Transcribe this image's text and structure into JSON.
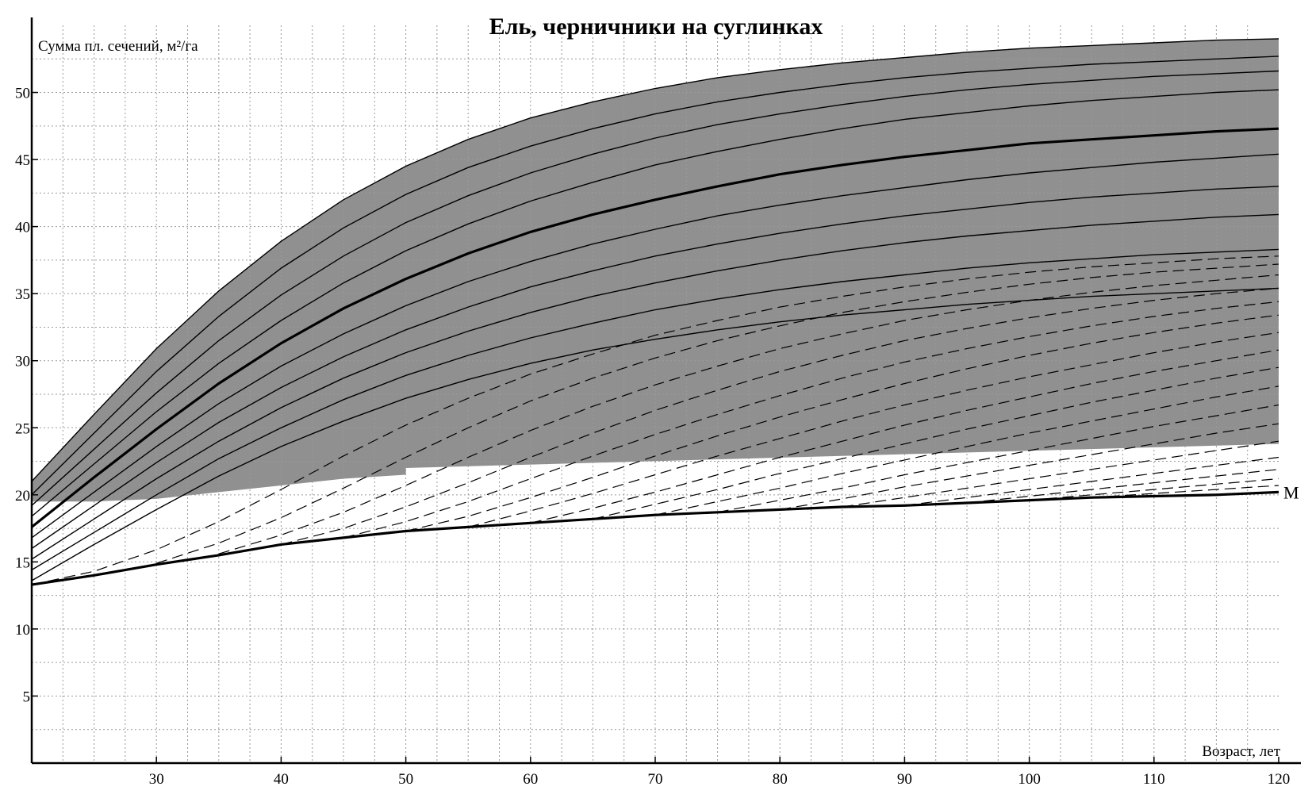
{
  "chart_data": {
    "type": "line",
    "title": "Ель, черничники на суглинках",
    "xlabel": "Возраст, лет",
    "ylabel": "Сумма пл. сечений, м²/га",
    "xlim": [
      20,
      120
    ],
    "ylim": [
      0,
      55
    ],
    "x_ticks": [
      30,
      40,
      50,
      60,
      70,
      80,
      90,
      100,
      110,
      120
    ],
    "y_ticks": [
      5,
      10,
      15,
      20,
      25,
      30,
      35,
      40,
      45,
      50
    ],
    "grid": true,
    "x": [
      20,
      25,
      30,
      35,
      40,
      45,
      50,
      55,
      60,
      65,
      70,
      75,
      80,
      85,
      90,
      95,
      100,
      105,
      110,
      115,
      120
    ],
    "shaded_band": {
      "upper": [
        21.0,
        26.0,
        30.9,
        35.2,
        38.9,
        42.0,
        44.5,
        46.5,
        48.1,
        49.3,
        50.3,
        51.1,
        51.7,
        52.2,
        52.6,
        53.0,
        53.3,
        53.5,
        53.7,
        53.9,
        54.0
      ],
      "lower_left": [
        19.5,
        19.5,
        19.7,
        20.2,
        20.7,
        21.2,
        21.5
      ],
      "lower_left_x": [
        20,
        25,
        30,
        35,
        40,
        45,
        50
      ],
      "lower_right_x": [
        50,
        120
      ],
      "lower_right": [
        22.0,
        23.8
      ],
      "fill": "#8a8a8a"
    },
    "series": [
      {
        "name": "M",
        "style": "solid-bold",
        "values": [
          13.3,
          14.0,
          14.8,
          15.5,
          16.3,
          16.8,
          17.3,
          17.6,
          17.9,
          18.2,
          18.5,
          18.7,
          18.9,
          19.1,
          19.2,
          19.4,
          19.6,
          19.8,
          19.9,
          20.0,
          20.2
        ]
      },
      {
        "style": "solid",
        "values": [
          21.0,
          26.0,
          30.9,
          35.2,
          38.9,
          42.0,
          44.5,
          46.5,
          48.1,
          49.3,
          50.3,
          51.1,
          51.7,
          52.2,
          52.6,
          53.0,
          53.3,
          53.5,
          53.7,
          53.9,
          54.0
        ]
      },
      {
        "style": "solid",
        "values": [
          20.0,
          24.6,
          29.2,
          33.3,
          36.9,
          39.9,
          42.4,
          44.4,
          46.0,
          47.3,
          48.4,
          49.3,
          50.0,
          50.6,
          51.1,
          51.5,
          51.8,
          52.1,
          52.3,
          52.5,
          52.7
        ]
      },
      {
        "style": "solid",
        "values": [
          19.2,
          23.4,
          27.6,
          31.5,
          34.9,
          37.8,
          40.3,
          42.3,
          44.0,
          45.4,
          46.6,
          47.6,
          48.4,
          49.1,
          49.7,
          50.2,
          50.6,
          50.9,
          51.2,
          51.4,
          51.6
        ]
      },
      {
        "style": "solid",
        "values": [
          18.4,
          22.3,
          26.2,
          29.8,
          33.0,
          35.8,
          38.2,
          40.2,
          41.9,
          43.3,
          44.6,
          45.6,
          46.5,
          47.3,
          48.0,
          48.5,
          49.0,
          49.4,
          49.7,
          50.0,
          50.2
        ]
      },
      {
        "style": "solid-bold",
        "values": [
          17.6,
          21.3,
          24.9,
          28.3,
          31.3,
          33.9,
          36.1,
          38.0,
          39.6,
          40.9,
          42.0,
          43.0,
          43.9,
          44.6,
          45.2,
          45.7,
          46.2,
          46.5,
          46.8,
          47.1,
          47.3
        ]
      },
      {
        "style": "solid",
        "values": [
          16.8,
          20.2,
          23.6,
          26.8,
          29.6,
          32.0,
          34.1,
          35.9,
          37.4,
          38.7,
          39.8,
          40.8,
          41.6,
          42.3,
          42.9,
          43.5,
          44.0,
          44.4,
          44.8,
          45.1,
          45.4
        ]
      },
      {
        "style": "solid",
        "values": [
          16.0,
          19.2,
          22.4,
          25.4,
          28.0,
          30.3,
          32.3,
          34.0,
          35.5,
          36.7,
          37.8,
          38.7,
          39.5,
          40.2,
          40.8,
          41.3,
          41.8,
          42.2,
          42.5,
          42.8,
          43.0
        ]
      },
      {
        "style": "solid",
        "values": [
          15.2,
          18.2,
          21.2,
          24.0,
          26.5,
          28.7,
          30.6,
          32.2,
          33.6,
          34.8,
          35.8,
          36.7,
          37.5,
          38.2,
          38.8,
          39.3,
          39.7,
          40.1,
          40.4,
          40.7,
          40.9
        ]
      },
      {
        "style": "solid",
        "values": [
          14.4,
          17.2,
          20.0,
          22.7,
          25.0,
          27.1,
          28.9,
          30.4,
          31.7,
          32.8,
          33.8,
          34.6,
          35.3,
          35.9,
          36.4,
          36.9,
          37.3,
          37.6,
          37.9,
          38.1,
          38.3
        ]
      },
      {
        "style": "solid",
        "values": [
          13.6,
          16.3,
          18.9,
          21.4,
          23.6,
          25.5,
          27.2,
          28.6,
          29.8,
          30.8,
          31.6,
          32.3,
          32.9,
          33.4,
          33.8,
          34.2,
          34.5,
          34.8,
          35.0,
          35.2,
          35.4
        ]
      },
      {
        "style": "dashed",
        "values": [
          13.3,
          14.3,
          15.9,
          18.0,
          20.4,
          22.9,
          25.2,
          27.2,
          29.0,
          30.5,
          31.9,
          33.0,
          34.0,
          34.8,
          35.5,
          36.1,
          36.6,
          37.0,
          37.3,
          37.6,
          37.8
        ]
      },
      {
        "style": "dashed",
        "values": [
          null,
          null,
          14.9,
          16.4,
          18.3,
          20.5,
          22.8,
          25.0,
          27.0,
          28.7,
          30.2,
          31.5,
          32.6,
          33.6,
          34.4,
          35.1,
          35.7,
          36.2,
          36.6,
          36.9,
          37.2
        ]
      },
      {
        "style": "dashed",
        "values": [
          null,
          null,
          null,
          15.6,
          17.0,
          18.7,
          20.7,
          22.8,
          24.8,
          26.6,
          28.2,
          29.6,
          30.9,
          32.0,
          33.0,
          33.8,
          34.5,
          35.1,
          35.6,
          36.0,
          36.4
        ]
      },
      {
        "style": "dashed",
        "values": [
          null,
          null,
          null,
          null,
          16.3,
          17.5,
          19.1,
          20.9,
          22.8,
          24.6,
          26.3,
          27.8,
          29.2,
          30.4,
          31.5,
          32.4,
          33.2,
          33.9,
          34.5,
          35.0,
          35.4
        ]
      },
      {
        "style": "dashed",
        "values": [
          null,
          null,
          null,
          null,
          null,
          16.8,
          18.0,
          19.5,
          21.2,
          22.9,
          24.5,
          26.0,
          27.4,
          28.7,
          29.9,
          30.9,
          31.8,
          32.6,
          33.3,
          33.9,
          34.4
        ]
      },
      {
        "style": "dashed",
        "values": [
          null,
          null,
          null,
          null,
          null,
          null,
          17.3,
          18.4,
          19.8,
          21.3,
          22.9,
          24.4,
          25.8,
          27.1,
          28.3,
          29.4,
          30.4,
          31.3,
          32.1,
          32.8,
          33.4
        ]
      },
      {
        "style": "dashed",
        "values": [
          null,
          null,
          null,
          null,
          null,
          null,
          null,
          17.6,
          18.8,
          20.1,
          21.5,
          22.9,
          24.2,
          25.5,
          26.7,
          27.8,
          28.8,
          29.7,
          30.6,
          31.4,
          32.1
        ]
      },
      {
        "style": "dashed",
        "values": [
          null,
          null,
          null,
          null,
          null,
          null,
          null,
          null,
          17.9,
          19.0,
          20.2,
          21.5,
          22.8,
          24.0,
          25.2,
          26.3,
          27.3,
          28.3,
          29.2,
          30.0,
          30.8
        ]
      },
      {
        "style": "dashed",
        "values": [
          null,
          null,
          null,
          null,
          null,
          null,
          null,
          null,
          null,
          18.2,
          19.3,
          20.4,
          21.6,
          22.7,
          23.8,
          24.9,
          25.9,
          26.9,
          27.8,
          28.7,
          29.5
        ]
      },
      {
        "style": "dashed",
        "values": [
          null,
          null,
          null,
          null,
          null,
          null,
          null,
          null,
          null,
          null,
          18.5,
          19.5,
          20.5,
          21.6,
          22.6,
          23.6,
          24.6,
          25.5,
          26.4,
          27.3,
          28.1
        ]
      },
      {
        "style": "dashed",
        "values": [
          null,
          null,
          null,
          null,
          null,
          null,
          null,
          null,
          null,
          null,
          null,
          18.7,
          19.6,
          20.5,
          21.5,
          22.4,
          23.3,
          24.2,
          25.1,
          25.9,
          26.7
        ]
      },
      {
        "style": "dashed",
        "values": [
          null,
          null,
          null,
          null,
          null,
          null,
          null,
          null,
          null,
          null,
          null,
          null,
          18.9,
          19.7,
          20.6,
          21.4,
          22.2,
          23.0,
          23.8,
          24.6,
          25.3
        ]
      },
      {
        "style": "dashed",
        "values": [
          null,
          null,
          null,
          null,
          null,
          null,
          null,
          null,
          null,
          null,
          null,
          null,
          null,
          19.1,
          19.8,
          20.5,
          21.2,
          21.9,
          22.6,
          23.3,
          24.0
        ]
      },
      {
        "style": "dashed",
        "values": [
          null,
          null,
          null,
          null,
          null,
          null,
          null,
          null,
          null,
          null,
          null,
          null,
          null,
          null,
          19.2,
          19.8,
          20.4,
          21.0,
          21.6,
          22.2,
          22.8
        ]
      },
      {
        "style": "dashed",
        "values": [
          null,
          null,
          null,
          null,
          null,
          null,
          null,
          null,
          null,
          null,
          null,
          null,
          null,
          null,
          null,
          19.4,
          19.9,
          20.4,
          20.9,
          21.4,
          21.9
        ]
      },
      {
        "style": "dashed",
        "values": [
          null,
          null,
          null,
          null,
          null,
          null,
          null,
          null,
          null,
          null,
          null,
          null,
          null,
          null,
          null,
          null,
          19.6,
          20.0,
          20.4,
          20.8,
          21.2
        ]
      },
      {
        "style": "dashed",
        "values": [
          null,
          null,
          null,
          null,
          null,
          null,
          null,
          null,
          null,
          null,
          null,
          null,
          null,
          null,
          null,
          null,
          null,
          19.8,
          20.1,
          20.4,
          20.7
        ]
      }
    ]
  }
}
